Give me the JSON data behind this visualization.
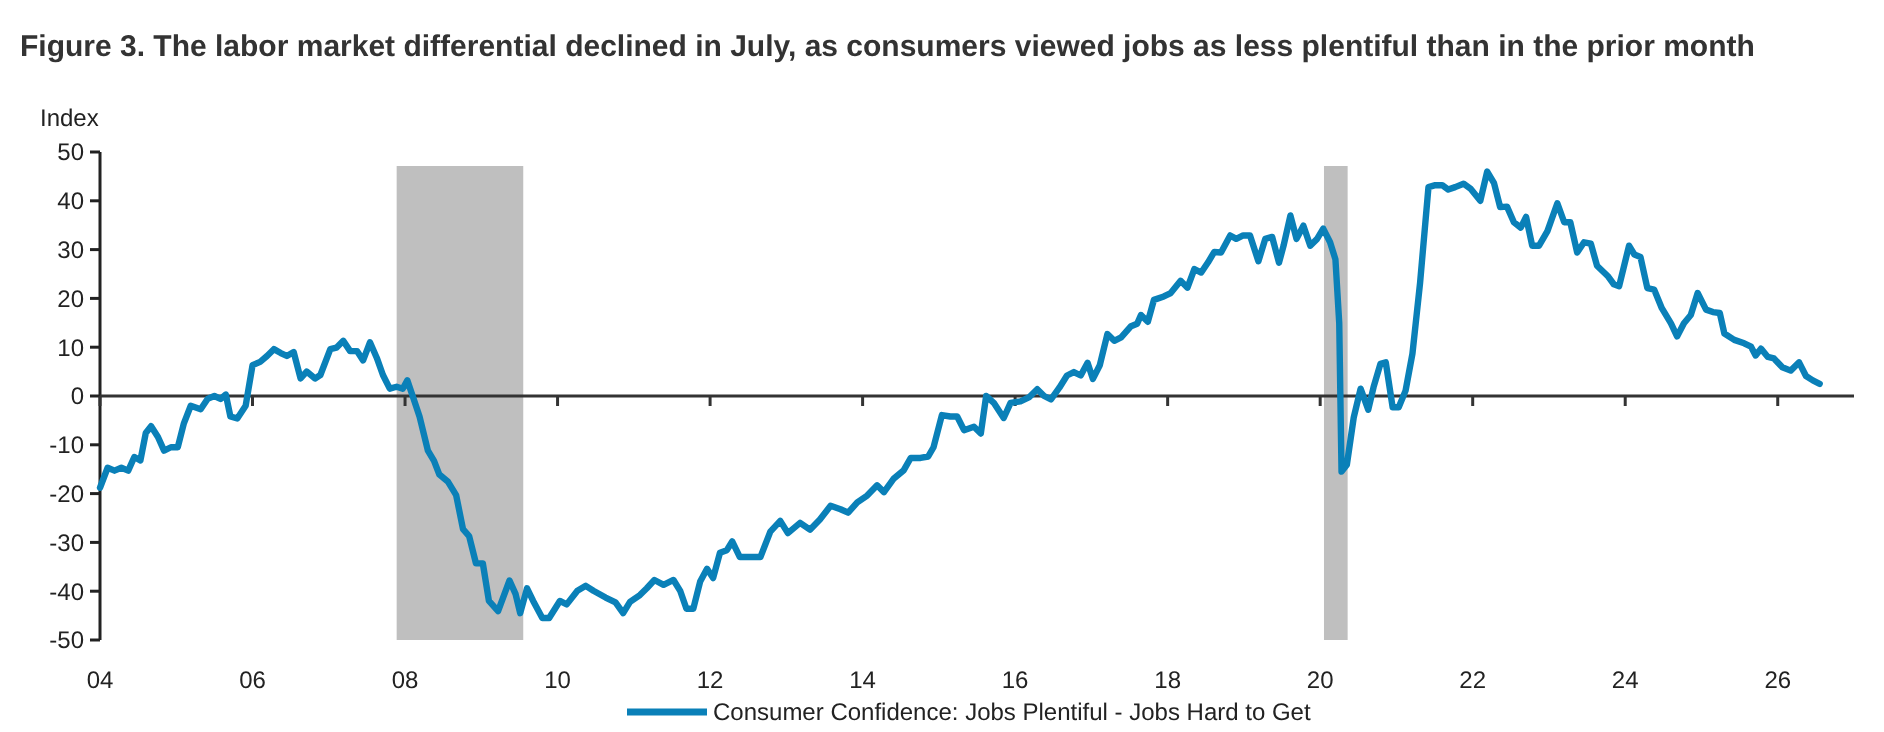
{
  "chart_data": {
    "type": "line",
    "title": "Figure 3. The labor market differential declined in July, as consumers viewed jobs as less plentiful than in the prior month",
    "ylabel": "Index",
    "xlim": [
      2004,
      2027
    ],
    "xticks": [
      {
        "value": 2004,
        "label": "04"
      },
      {
        "value": 2006,
        "label": "06"
      },
      {
        "value": 2008,
        "label": "08"
      },
      {
        "value": 2010,
        "label": "10"
      },
      {
        "value": 2012,
        "label": "12"
      },
      {
        "value": 2014,
        "label": "14"
      },
      {
        "value": 2016,
        "label": "16"
      },
      {
        "value": 2018,
        "label": "18"
      },
      {
        "value": 2020,
        "label": "20"
      },
      {
        "value": 2022,
        "label": "22"
      },
      {
        "value": 2024,
        "label": "24"
      },
      {
        "value": 2026,
        "label": "26"
      }
    ],
    "ylim": [
      -50,
      50
    ],
    "yticks": [
      -50,
      -40,
      -30,
      -20,
      -10,
      0,
      10,
      20,
      30,
      40,
      50
    ],
    "grid": false,
    "legend": "bottom",
    "line_style": "solid",
    "marker": "none",
    "ref_lines": [
      {
        "axis": "y",
        "value": 0,
        "color": "#333333"
      }
    ],
    "bands": [
      {
        "axis": "x",
        "from": 2007.89,
        "to": 2009.55,
        "color": "#bfbfbf"
      },
      {
        "axis": "x",
        "from": 2020.05,
        "to": 2020.36,
        "color": "#bfbfbf"
      }
    ],
    "series": [
      {
        "name": "Consumer Confidence: Jobs Plentiful - Jobs Hard to Get",
        "color": "#0a80b8",
        "x": [
          2004.0,
          2004.1,
          2004.19,
          2004.28,
          2004.37,
          2004.45,
          2004.53,
          2004.6,
          2004.67,
          2004.76,
          2004.84,
          2004.93,
          2005.02,
          2005.1,
          2005.19,
          2005.32,
          2005.41,
          2005.5,
          2005.58,
          2005.65,
          2005.71,
          2005.8,
          2005.91,
          2006.0,
          2006.1,
          2006.19,
          2006.28,
          2006.37,
          2006.45,
          2006.54,
          2006.63,
          2006.71,
          2006.82,
          2006.89,
          2007.02,
          2007.1,
          2007.19,
          2007.28,
          2007.37,
          2007.45,
          2007.54,
          2007.63,
          2007.71,
          2007.8,
          2007.89,
          2007.97,
          2008.03,
          2008.1,
          2008.19,
          2008.3,
          2008.38,
          2008.45,
          2008.56,
          2008.67,
          2008.76,
          2008.84,
          2008.93,
          2009.02,
          2009.1,
          2009.22,
          2009.37,
          2009.45,
          2009.51,
          2009.6,
          2009.68,
          2009.8,
          2009.89,
          2010.03,
          2010.12,
          2010.26,
          2010.37,
          2010.47,
          2010.63,
          2010.76,
          2010.86,
          2010.95,
          2011.08,
          2011.17,
          2011.27,
          2011.39,
          2011.52,
          2011.61,
          2011.69,
          2011.78,
          2011.87,
          2011.96,
          2012.04,
          2012.13,
          2012.22,
          2012.29,
          2012.39,
          2012.53,
          2012.66,
          2012.79,
          2012.92,
          2013.02,
          2013.18,
          2013.31,
          2013.44,
          2013.58,
          2013.71,
          2013.81,
          2013.93,
          2014.06,
          2014.19,
          2014.28,
          2014.41,
          2014.54,
          2014.63,
          2014.76,
          2014.86,
          2014.93,
          2015.04,
          2015.15,
          2015.24,
          2015.33,
          2015.46,
          2015.55,
          2015.62,
          2015.72,
          2015.85,
          2015.94,
          2016.07,
          2016.18,
          2016.29,
          2016.38,
          2016.47,
          2016.58,
          2016.68,
          2016.77,
          2016.86,
          2016.95,
          2017.02,
          2017.11,
          2017.21,
          2017.3,
          2017.39,
          2017.52,
          2017.6,
          2017.65,
          2017.74,
          2017.82,
          2017.95,
          2018.04,
          2018.17,
          2018.26,
          2018.35,
          2018.44,
          2018.53,
          2018.61,
          2018.7,
          2018.82,
          2018.9,
          2018.99,
          2019.08,
          2019.19,
          2019.28,
          2019.37,
          2019.46,
          2019.52,
          2019.61,
          2019.69,
          2019.78,
          2019.87,
          2019.96,
          2020.04,
          2020.13,
          2020.2,
          2020.25,
          2020.28,
          2020.35,
          2020.44,
          2020.53,
          2020.63,
          2020.7,
          2020.79,
          2020.86,
          2020.95,
          2021.03,
          2021.12,
          2021.21,
          2021.31,
          2021.42,
          2021.51,
          2021.6,
          2021.68,
          2021.77,
          2021.88,
          2021.97,
          2022.1,
          2022.19,
          2022.28,
          2022.36,
          2022.45,
          2022.54,
          2022.63,
          2022.7,
          2022.78,
          2022.87,
          2022.98,
          2023.11,
          2023.2,
          2023.28,
          2023.37,
          2023.46,
          2023.55,
          2023.63,
          2023.77,
          2023.85,
          2023.92,
          2024.05,
          2024.12,
          2024.2,
          2024.29,
          2024.38,
          2024.48,
          2024.6,
          2024.68,
          2024.77,
          2024.86,
          2024.95,
          2025.06,
          2025.15,
          2025.24,
          2025.3,
          2025.43,
          2025.56,
          2025.65,
          2025.71,
          2025.78,
          2025.87,
          2025.95,
          2026.06,
          2026.17,
          2026.28,
          2026.37,
          2026.46,
          2026.55
        ],
        "values": [
          -18.8,
          -14.7,
          -15.3,
          -14.7,
          -15.3,
          -12.5,
          -13.2,
          -7.6,
          -6.2,
          -8.4,
          -11.2,
          -10.5,
          -10.5,
          -5.6,
          -2.0,
          -2.7,
          -0.6,
          0,
          -0.6,
          0.3,
          -4.2,
          -4.6,
          -2.0,
          6.3,
          7,
          8.2,
          9.6,
          8.8,
          8.2,
          9,
          3.6,
          5,
          3.6,
          4.3,
          9.6,
          9.9,
          11.3,
          9.2,
          9.2,
          7.3,
          11,
          7.8,
          4.3,
          1.5,
          1.9,
          1.5,
          3.2,
          0,
          -4.2,
          -11.2,
          -13.3,
          -16.1,
          -17.5,
          -20.3,
          -27.3,
          -28.7,
          -34.3,
          -34.3,
          -42,
          -44.1,
          -37.8,
          -40.6,
          -44.5,
          -39.4,
          -42,
          -45.5,
          -45.5,
          -42,
          -42.7,
          -39.9,
          -38.9,
          -39.9,
          -41.3,
          -42.3,
          -44.5,
          -42.2,
          -40.8,
          -39.4,
          -37.7,
          -38.7,
          -37.7,
          -40,
          -43.6,
          -43.6,
          -38,
          -35.4,
          -37.3,
          -32.1,
          -31.6,
          -29.8,
          -33,
          -33,
          -33,
          -27.8,
          -25.6,
          -28.1,
          -26,
          -27.4,
          -25.3,
          -22.5,
          -23.2,
          -23.9,
          -21.8,
          -20.4,
          -18.3,
          -19.7,
          -16.9,
          -15.2,
          -12.7,
          -12.7,
          -12.4,
          -10.5,
          -3.9,
          -4.2,
          -4.2,
          -7,
          -6.3,
          -7.7,
          0,
          -1.4,
          -4.5,
          -1.4,
          -1.1,
          -0.3,
          1.4,
          0,
          -0.7,
          1.7,
          4.2,
          4.9,
          4.2,
          6.8,
          3.5,
          6.3,
          12.7,
          11.3,
          12,
          14.3,
          14.8,
          16.6,
          15.2,
          19.7,
          20.4,
          21.1,
          23.6,
          22.2,
          26,
          25.3,
          27.4,
          29.5,
          29.4,
          32.9,
          32.2,
          32.9,
          32.9,
          27.6,
          32.2,
          32.6,
          27.3,
          30.8,
          37,
          32.2,
          34.9,
          30.8,
          32.2,
          34.3,
          31.5,
          28,
          14.9,
          -15.5,
          -14.1,
          -4.4,
          1.5,
          -2.8,
          1.8,
          6.6,
          6.9,
          -2.3,
          -2.3,
          1.1,
          8.7,
          23.2,
          42.8,
          43.2,
          43.2,
          42.3,
          42.8,
          43.5,
          42.5,
          40,
          46,
          43.6,
          38.7,
          38.8,
          35.6,
          34.5,
          36.7,
          30.8,
          30.8,
          33.8,
          39.5,
          35.6,
          35.6,
          29.4,
          31.5,
          31.2,
          26.7,
          24.6,
          22.9,
          22.5,
          30.8,
          29,
          28.5,
          22.1,
          21.8,
          18,
          14.9,
          12.2,
          14.9,
          16.6,
          21.1,
          17.7,
          17.2,
          17,
          12.8,
          11.5,
          10.8,
          10.1,
          8.3,
          9.7,
          8,
          7.7,
          5.9,
          5.2,
          6.9,
          4.1,
          3.2,
          2.5
        ]
      }
    ]
  }
}
